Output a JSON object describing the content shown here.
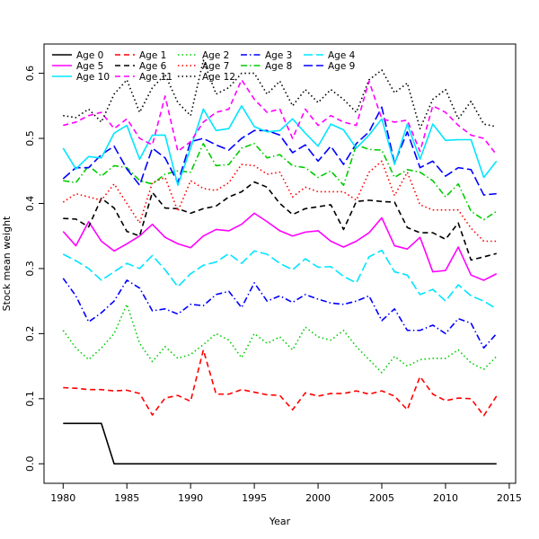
{
  "chart_data": {
    "type": "line",
    "title": "",
    "xlabel": "Year",
    "ylabel": "Stock mean weight",
    "xlim": [
      1978.5,
      2015.5
    ],
    "ylim": [
      -0.03,
      0.645
    ],
    "xticks": [
      1980,
      1985,
      1990,
      1995,
      2000,
      2005,
      2010,
      2015
    ],
    "yticks": [
      0.0,
      0.1,
      0.2,
      0.3,
      0.4,
      0.5,
      0.6
    ],
    "ytick_labels": [
      "0.0",
      "0.1",
      "0.2",
      "0.3",
      "0.4",
      "0.5",
      "0.6"
    ],
    "grid": false,
    "legend_position": "top-left",
    "x": [
      1980,
      1981,
      1982,
      1983,
      1984,
      1985,
      1986,
      1987,
      1988,
      1989,
      1990,
      1991,
      1992,
      1993,
      1994,
      1995,
      1996,
      1997,
      1998,
      1999,
      2000,
      2001,
      2002,
      2003,
      2004,
      2005,
      2006,
      2007,
      2008,
      2009,
      2010,
      2011,
      2012,
      2013,
      2014
    ],
    "series": [
      {
        "name": "Age 0",
        "color": "#000000",
        "dash": "solid",
        "values": [
          0.062,
          0.062,
          0.062,
          0.062,
          0.0,
          0.0,
          0.0,
          0.0,
          0.0,
          0.0,
          0.0,
          0.0,
          0.0,
          0.0,
          0.0,
          0.0,
          0.0,
          0.0,
          0.0,
          0.0,
          0.0,
          0.0,
          0.0,
          0.0,
          0.0,
          0.0,
          0.0,
          0.0,
          0.0,
          0.0,
          0.0,
          0.0,
          0.0,
          0.0,
          0.0
        ]
      },
      {
        "name": "Age 1",
        "color": "#ff0000",
        "dash": "dashed",
        "values": [
          0.117,
          0.116,
          0.114,
          0.114,
          0.112,
          0.113,
          0.108,
          0.075,
          0.101,
          0.105,
          0.096,
          0.175,
          0.107,
          0.107,
          0.114,
          0.11,
          0.106,
          0.105,
          0.083,
          0.109,
          0.104,
          0.108,
          0.108,
          0.112,
          0.107,
          0.112,
          0.104,
          0.083,
          0.134,
          0.107,
          0.097,
          0.101,
          0.1,
          0.074,
          0.104
        ]
      },
      {
        "name": "Age 2",
        "color": "#00cc00",
        "dash": "dotted",
        "values": [
          0.205,
          0.178,
          0.16,
          0.178,
          0.2,
          0.245,
          0.185,
          0.157,
          0.18,
          0.162,
          0.168,
          0.183,
          0.2,
          0.19,
          0.163,
          0.2,
          0.185,
          0.195,
          0.175,
          0.21,
          0.195,
          0.19,
          0.205,
          0.18,
          0.16,
          0.14,
          0.165,
          0.15,
          0.16,
          0.162,
          0.162,
          0.175,
          0.155,
          0.145,
          0.165
        ]
      },
      {
        "name": "Age 3",
        "color": "#0000ff",
        "dash": "dashdot",
        "values": [
          0.285,
          0.258,
          0.218,
          0.232,
          0.25,
          0.282,
          0.27,
          0.235,
          0.238,
          0.23,
          0.245,
          0.243,
          0.26,
          0.265,
          0.24,
          0.278,
          0.25,
          0.258,
          0.248,
          0.26,
          0.253,
          0.247,
          0.245,
          0.25,
          0.258,
          0.22,
          0.238,
          0.205,
          0.205,
          0.213,
          0.2,
          0.223,
          0.216,
          0.178,
          0.2
        ]
      },
      {
        "name": "Age 4",
        "color": "#00e5ff",
        "dash": "longdash",
        "values": [
          0.322,
          0.312,
          0.3,
          0.282,
          0.295,
          0.308,
          0.3,
          0.32,
          0.298,
          0.272,
          0.292,
          0.305,
          0.31,
          0.323,
          0.308,
          0.327,
          0.322,
          0.308,
          0.298,
          0.315,
          0.302,
          0.303,
          0.288,
          0.278,
          0.318,
          0.328,
          0.295,
          0.29,
          0.26,
          0.268,
          0.25,
          0.275,
          0.258,
          0.25,
          0.238
        ]
      },
      {
        "name": "Age 5",
        "color": "#ff00ff",
        "dash": "solid",
        "values": [
          0.357,
          0.335,
          0.372,
          0.342,
          0.327,
          0.338,
          0.35,
          0.368,
          0.348,
          0.338,
          0.332,
          0.35,
          0.36,
          0.358,
          0.368,
          0.385,
          0.372,
          0.358,
          0.35,
          0.356,
          0.358,
          0.342,
          0.333,
          0.342,
          0.355,
          0.378,
          0.335,
          0.33,
          0.348,
          0.295,
          0.297,
          0.333,
          0.29,
          0.282,
          0.292
        ]
      },
      {
        "name": "Age 6",
        "color": "#000000",
        "dash": "dashed",
        "values": [
          0.377,
          0.376,
          0.364,
          0.408,
          0.393,
          0.357,
          0.35,
          0.417,
          0.393,
          0.392,
          0.385,
          0.392,
          0.396,
          0.41,
          0.418,
          0.433,
          0.425,
          0.4,
          0.383,
          0.392,
          0.395,
          0.398,
          0.36,
          0.403,
          0.405,
          0.403,
          0.402,
          0.363,
          0.355,
          0.355,
          0.345,
          0.37,
          0.313,
          0.318,
          0.323
        ]
      },
      {
        "name": "Age 7",
        "color": "#ff0000",
        "dash": "dotted",
        "values": [
          0.402,
          0.415,
          0.41,
          0.405,
          0.43,
          0.4,
          0.37,
          0.432,
          0.44,
          0.388,
          0.435,
          0.423,
          0.42,
          0.432,
          0.46,
          0.458,
          0.445,
          0.448,
          0.41,
          0.425,
          0.418,
          0.418,
          0.418,
          0.405,
          0.448,
          0.465,
          0.412,
          0.448,
          0.398,
          0.39,
          0.39,
          0.39,
          0.362,
          0.342,
          0.342
        ]
      },
      {
        "name": "Age 8",
        "color": "#00cc00",
        "dash": "dashdot",
        "values": [
          0.435,
          0.432,
          0.458,
          0.442,
          0.458,
          0.455,
          0.435,
          0.43,
          0.445,
          0.45,
          0.448,
          0.492,
          0.458,
          0.46,
          0.485,
          0.492,
          0.47,
          0.475,
          0.458,
          0.455,
          0.44,
          0.45,
          0.428,
          0.49,
          0.483,
          0.482,
          0.44,
          0.452,
          0.448,
          0.435,
          0.41,
          0.43,
          0.388,
          0.375,
          0.388
        ]
      },
      {
        "name": "Age 9",
        "color": "#0000ff",
        "dash": "longdash",
        "values": [
          0.438,
          0.455,
          0.455,
          0.475,
          0.488,
          0.453,
          0.428,
          0.485,
          0.47,
          0.432,
          0.495,
          0.5,
          0.49,
          0.482,
          0.5,
          0.512,
          0.512,
          0.505,
          0.478,
          0.49,
          0.465,
          0.488,
          0.46,
          0.492,
          0.51,
          0.548,
          0.462,
          0.51,
          0.455,
          0.465,
          0.442,
          0.455,
          0.452,
          0.413,
          0.415
        ]
      },
      {
        "name": "Age 10",
        "color": "#00e5ff",
        "dash": "solid",
        "values": [
          0.485,
          0.453,
          0.472,
          0.47,
          0.508,
          0.52,
          0.468,
          0.505,
          0.505,
          0.428,
          0.485,
          0.545,
          0.512,
          0.515,
          0.55,
          0.518,
          0.51,
          0.512,
          0.53,
          0.508,
          0.488,
          0.522,
          0.513,
          0.485,
          0.505,
          0.53,
          0.46,
          0.522,
          0.468,
          0.522,
          0.497,
          0.498,
          0.498,
          0.44,
          0.465
        ]
      },
      {
        "name": "Age 11",
        "color": "#ff00ff",
        "dash": "dashed",
        "values": [
          0.52,
          0.525,
          0.535,
          0.54,
          0.515,
          0.53,
          0.5,
          0.49,
          0.565,
          0.48,
          0.495,
          0.525,
          0.54,
          0.545,
          0.59,
          0.56,
          0.54,
          0.545,
          0.5,
          0.545,
          0.52,
          0.535,
          0.525,
          0.52,
          0.588,
          0.53,
          0.525,
          0.528,
          0.48,
          0.55,
          0.54,
          0.52,
          0.505,
          0.5,
          0.475
        ]
      },
      {
        "name": "Age 12",
        "color": "#000000",
        "dash": "dotted",
        "values": [
          0.535,
          0.532,
          0.545,
          0.525,
          0.568,
          0.59,
          0.54,
          0.578,
          0.598,
          0.555,
          0.535,
          0.62,
          0.568,
          0.578,
          0.6,
          0.6,
          0.568,
          0.588,
          0.55,
          0.575,
          0.555,
          0.575,
          0.56,
          0.54,
          0.59,
          0.605,
          0.57,
          0.585,
          0.515,
          0.56,
          0.575,
          0.53,
          0.557,
          0.522,
          0.518
        ]
      }
    ]
  }
}
